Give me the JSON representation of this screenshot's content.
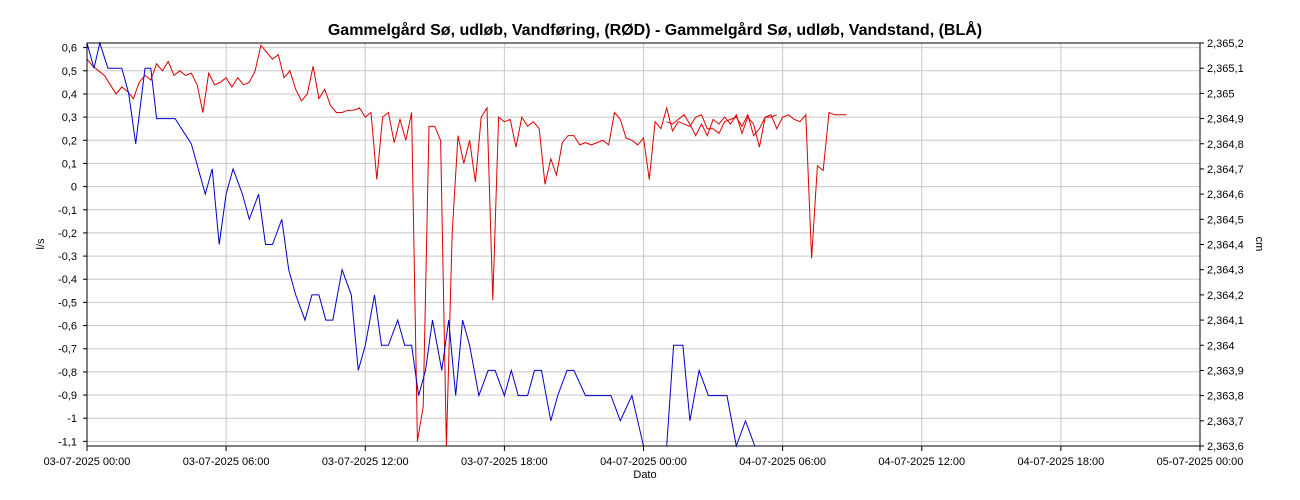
{
  "chart_data": {
    "type": "line",
    "title": "Gammelgård Sø, udløb, Vandføring, (RØD)  -  Gammelgård Sø, udløb, Vandstand, (BLÅ)",
    "xlabel": "Dato",
    "ylabel_left": "l/s",
    "ylabel_right": "cm",
    "x_ticks": [
      "03-07-2025 00:00",
      "03-07-2025 06:00",
      "03-07-2025 12:00",
      "03-07-2025 18:00",
      "04-07-2025 00:00",
      "04-07-2025 06:00",
      "04-07-2025 12:00",
      "04-07-2025 18:00",
      "05-07-2025 00:00"
    ],
    "xlim_hours": [
      0,
      48
    ],
    "ylim_left": [
      -1.12,
      0.62
    ],
    "ylim_right": [
      2.3636,
      2.3652
    ],
    "y_ticks_left": [
      "0,6",
      "0,5",
      "0,4",
      "0,3",
      "0,2",
      "0,1",
      "0",
      "-0,1",
      "-0,2",
      "-0,3",
      "-0,4",
      "-0,5",
      "-0,6",
      "-0,7",
      "-0,8",
      "-0,9",
      "-1",
      "-1,1"
    ],
    "y_ticks_right": [
      "2,365,2",
      "2,365,1",
      "2,365",
      "2,364,9",
      "2,364,8",
      "2,364,7",
      "2,364,6",
      "2,364,5",
      "2,364,4",
      "2,364,3",
      "2,364,2",
      "2,364,1",
      "2,364",
      "2,363,9",
      "2,363,8",
      "2,363,7",
      "2,363,6"
    ],
    "grid": true,
    "colors": {
      "vandforing": "#dd0000",
      "vandstand": "#0000cc",
      "grid": "#c8c8c8",
      "axis": "#000000"
    },
    "series": [
      {
        "axis": "left",
        "color": "#dd0000",
        "x_hours": [
          0,
          0.25,
          0.5,
          0.75,
          1.0,
          1.25,
          1.5,
          1.75,
          2.0,
          2.25,
          2.5,
          2.75,
          3.0,
          3.25,
          3.5,
          3.75,
          4.0,
          4.25,
          4.5,
          4.75,
          5.0,
          5.25,
          5.5,
          5.75,
          6.0,
          6.25,
          6.5,
          6.75,
          7.0,
          7.25,
          7.5,
          7.75,
          8.0,
          8.25,
          8.5,
          8.75,
          9.0,
          9.25,
          9.5,
          9.75,
          10.0,
          10.25,
          10.5,
          10.75,
          11.0,
          11.25,
          11.5,
          11.75,
          12.0,
          12.25,
          12.5,
          12.75,
          13.0,
          13.25,
          13.5,
          13.75,
          14.0,
          14.25,
          14.5,
          14.75,
          15.0,
          15.25,
          15.5,
          15.75,
          16.0,
          16.25,
          16.5,
          16.75,
          17.0,
          17.25,
          17.5,
          17.75,
          18.0,
          18.25,
          18.5,
          18.75,
          19.0,
          19.25,
          19.5,
          19.75,
          20.0,
          20.25,
          20.5,
          20.75,
          21.0,
          21.25,
          21.5,
          21.75,
          22.0,
          22.25,
          22.5,
          22.75,
          23.0,
          23.25,
          23.5,
          23.75,
          24.0,
          24.25,
          24.5,
          24.75,
          25.0,
          25.25,
          25.5,
          25.75,
          26.0,
          26.25,
          26.5,
          26.75,
          27.0,
          27.25,
          27.5,
          27.75,
          28.0,
          28.25,
          28.5,
          28.75,
          29.0,
          29.25,
          29.5,
          29.75
        ],
        "values": [
          0.55,
          0.52,
          0.5,
          0.48,
          0.44,
          0.4,
          0.43,
          0.41,
          0.38,
          0.45,
          0.48,
          0.46,
          0.53,
          0.5,
          0.54,
          0.48,
          0.5,
          0.48,
          0.49,
          0.44,
          0.32,
          0.49,
          0.44,
          0.45,
          0.47,
          0.43,
          0.47,
          0.44,
          0.45,
          0.5,
          0.61,
          0.58,
          0.55,
          0.57,
          0.47,
          0.5,
          0.42,
          0.37,
          0.4,
          0.52,
          0.38,
          0.42,
          0.35,
          0.32,
          0.32,
          0.33,
          0.33,
          0.34,
          0.3,
          0.32,
          0.03,
          0.3,
          0.32,
          0.19,
          0.29,
          0.2,
          0.32,
          -1.1,
          -0.95,
          0.26,
          0.26,
          0.2,
          -1.12,
          -0.2,
          0.22,
          0.1,
          0.2,
          0.02,
          0.3,
          0.34,
          -0.49,
          0.3,
          0.28,
          0.29,
          0.17,
          0.3,
          0.26,
          0.28,
          0.25,
          0.01,
          0.12,
          0.05,
          0.19,
          0.22,
          0.22,
          0.18,
          0.19,
          0.18,
          0.19,
          0.2,
          0.18,
          0.32,
          0.29,
          0.21,
          0.2,
          0.18,
          0.21,
          0.03,
          0.28,
          0.25,
          0.34,
          0.24,
          0.28,
          0.27,
          0.26,
          0.3,
          0.31,
          0.25,
          0.25,
          0.23,
          0.28,
          0.29,
          0.3,
          0.26,
          0.31,
          0.22,
          0.25,
          0.3,
          0.3,
          0.31
        ]
      },
      {
        "axis": "left",
        "color": "#dd0000",
        "x_hours": [
          25.0,
          25.25,
          25.5,
          25.75,
          26.0,
          26.25,
          26.5,
          26.75,
          27.0,
          27.25,
          27.5,
          27.75,
          28.0,
          28.25,
          28.5,
          28.75,
          29.0,
          29.25,
          29.5,
          29.75,
          30.0,
          30.25,
          30.5,
          30.75,
          31.0,
          31.25,
          31.5,
          31.75,
          32.0,
          32.25,
          32.5,
          32.75
        ],
        "values": [
          0.28,
          0.27,
          0.29,
          0.31,
          0.27,
          0.22,
          0.27,
          0.22,
          0.29,
          0.27,
          0.3,
          0.27,
          0.31,
          0.23,
          0.3,
          0.27,
          0.17,
          0.3,
          0.31,
          0.25,
          0.3,
          0.31,
          0.29,
          0.28,
          0.31,
          -0.31,
          0.09,
          0.07,
          0.32,
          0.31,
          0.31,
          0.31
        ]
      },
      {
        "axis": "right",
        "color": "#0000cc",
        "x_hours": [
          0.0,
          0.3,
          0.55,
          0.9,
          1.2,
          1.5,
          1.8,
          2.1,
          2.5,
          2.75,
          3.0,
          3.2,
          3.5,
          3.8,
          4.5,
          5.1,
          5.4,
          5.7,
          6.0,
          6.3,
          6.7,
          7.0,
          7.4,
          7.7,
          8.0,
          8.4,
          8.7,
          9.0,
          9.4,
          9.7,
          10.0,
          10.3,
          10.6,
          11.0,
          11.4,
          11.7,
          12.0,
          12.4,
          12.7,
          13.0,
          13.4,
          13.7,
          14.0,
          14.3,
          14.6,
          14.9,
          15.3,
          15.6,
          15.9,
          16.2,
          16.5,
          16.9,
          17.3,
          17.6,
          18.0,
          18.3,
          18.6,
          19.0,
          19.3,
          19.6,
          20.0,
          20.3,
          20.7,
          21.0,
          21.5,
          22.0,
          22.3,
          22.6,
          23.0,
          23.5,
          24.0,
          24.5,
          25.0,
          25.3,
          25.7,
          26.0,
          26.4,
          26.8,
          27.2,
          27.6,
          28.0,
          28.4,
          28.8,
          29.2,
          29.5
        ],
        "values": [
          2.3652,
          2.3651,
          2.3652,
          2.3651,
          2.3651,
          2.3651,
          2.365,
          2.3648,
          2.3651,
          2.3651,
          2.3649,
          2.3649,
          2.3649,
          2.3649,
          2.3648,
          2.3646,
          2.3647,
          2.3644,
          2.3646,
          2.3647,
          2.3646,
          2.3645,
          2.3646,
          2.3644,
          2.3644,
          2.3645,
          2.3643,
          2.3642,
          2.3641,
          2.3642,
          2.3642,
          2.3641,
          2.3641,
          2.3643,
          2.3642,
          2.3639,
          2.364,
          2.3642,
          2.364,
          2.364,
          2.3641,
          2.364,
          2.364,
          2.3638,
          2.3639,
          2.3641,
          2.3639,
          2.3641,
          2.3638,
          2.3641,
          2.364,
          2.3638,
          2.3639,
          2.3639,
          2.3638,
          2.3639,
          2.3638,
          2.3638,
          2.3639,
          2.3639,
          2.3637,
          2.3638,
          2.3639,
          2.3639,
          2.3638,
          2.3638,
          2.3638,
          2.3638,
          2.3637,
          2.3638,
          2.3636,
          2.3636,
          2.3636,
          2.364,
          2.364,
          2.3637,
          2.3639,
          2.3638,
          2.3638,
          2.3638,
          2.3636,
          2.3637,
          2.3636,
          2.3636,
          2.3636
        ]
      }
    ]
  }
}
